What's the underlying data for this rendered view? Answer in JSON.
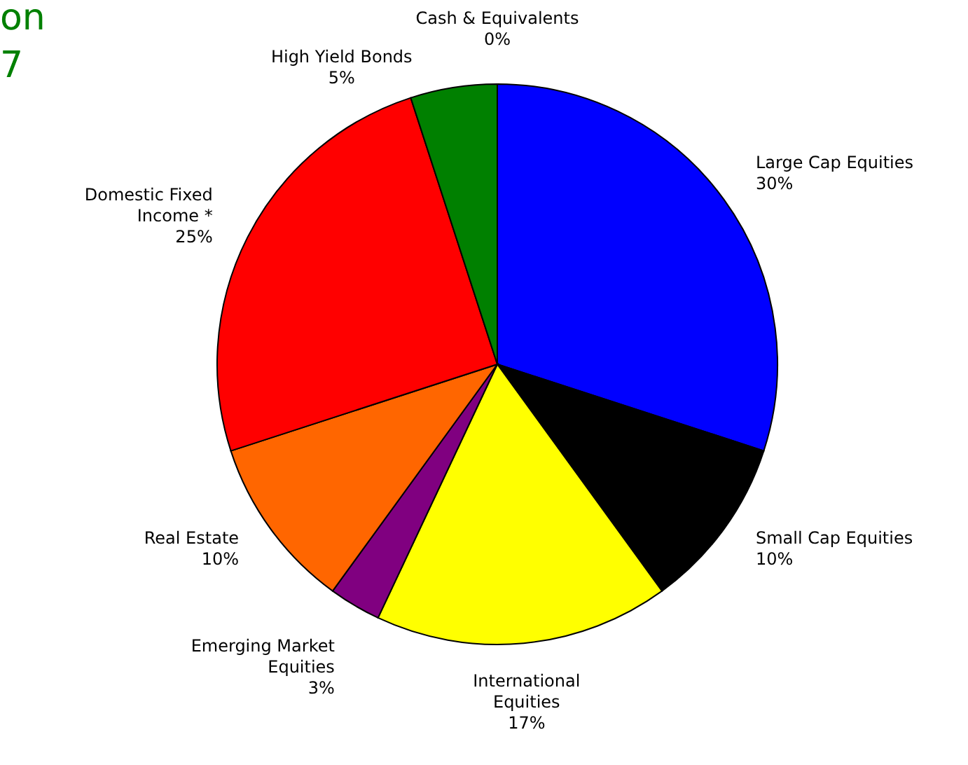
{
  "chart_data": {
    "type": "pie",
    "annotations": [
      "on",
      "7"
    ],
    "categories": [
      "Large Cap Equities",
      "Small Cap Equities",
      "International\nEquities",
      "Emerging Market\nEquities",
      "Real Estate",
      "Domestic Fixed\nIncome *",
      "High Yield Bonds",
      "Cash & Equivalents"
    ],
    "values": [
      30,
      10,
      17,
      3,
      10,
      25,
      5,
      0
    ],
    "value_labels": [
      "30%",
      "10%",
      "17%",
      "3%",
      "10%",
      "25%",
      "5%",
      "0%"
    ],
    "colors": [
      "#0000ff",
      "#000000",
      "#ffff00",
      "#800080",
      "#ff6600",
      "#ff0000",
      "#008000",
      "#00ffff"
    ]
  }
}
